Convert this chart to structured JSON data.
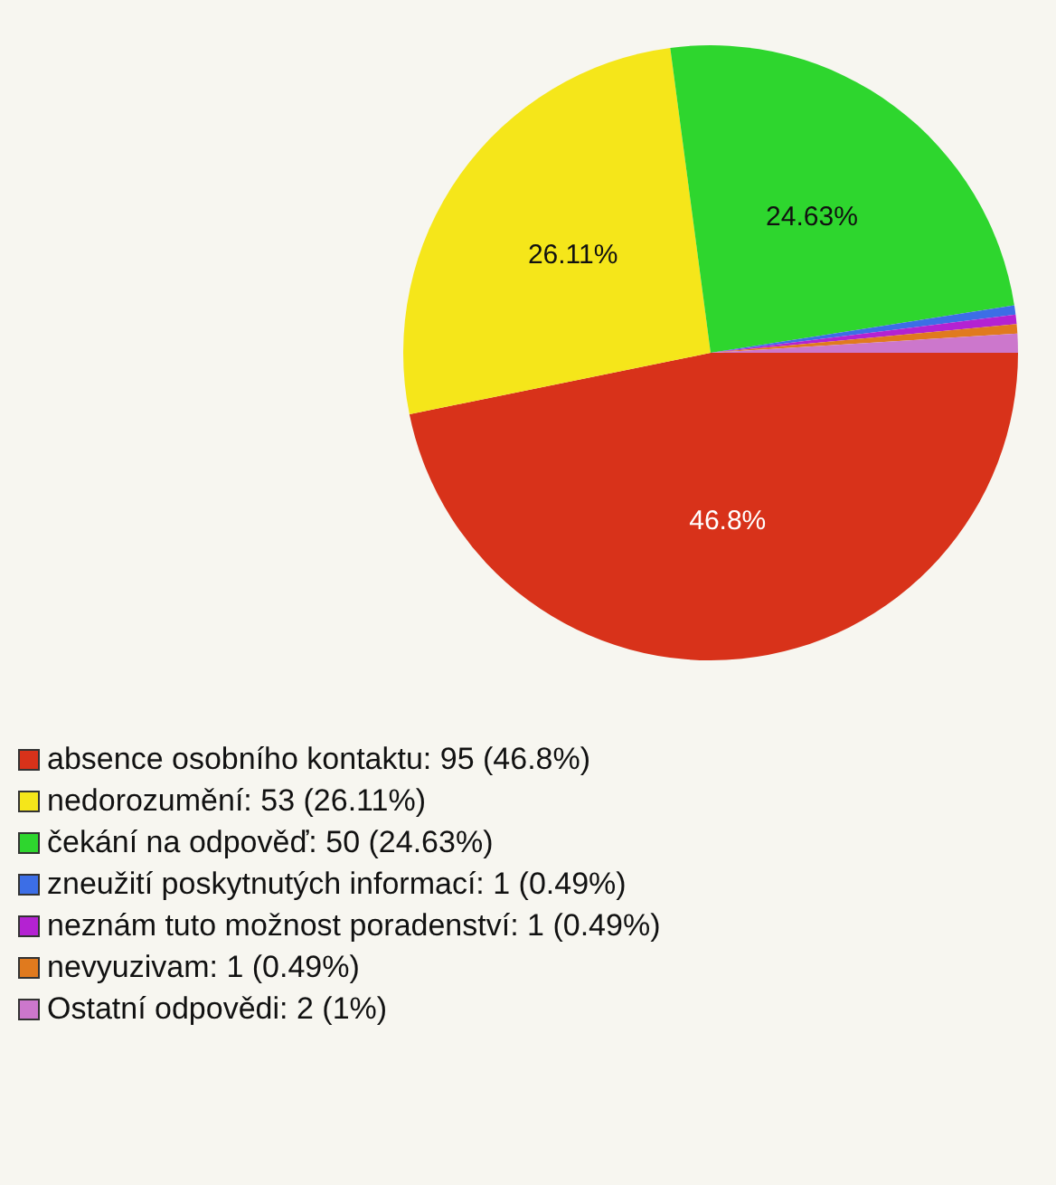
{
  "chart_data": {
    "type": "pie",
    "categories": [
      "absence osobního kontaktu: 95 (46.8%)",
      "nedorozumění: 53 (26.11%)",
      "čekání na odpověď: 50 (24.63%)",
      "zneužití poskytnutých informací: 1 (0.49%)",
      "neznám tuto možnost poradenství: 1 (0.49%)",
      "nevyuzivam: 1 (0.49%)",
      "Ostatní odpovědi: 2 (1%)"
    ],
    "values": [
      46.8,
      26.11,
      24.63,
      0.49,
      0.49,
      0.49,
      1
    ],
    "colors": [
      "#d8321a",
      "#f5e61a",
      "#2ed62e",
      "#3c6ee6",
      "#b422d2",
      "#e07a1e",
      "#cc77cc"
    ],
    "value_labels": [
      "46.8%",
      "26.11%",
      "24.63%",
      null,
      null,
      null,
      null
    ],
    "legend": "bottom left"
  }
}
